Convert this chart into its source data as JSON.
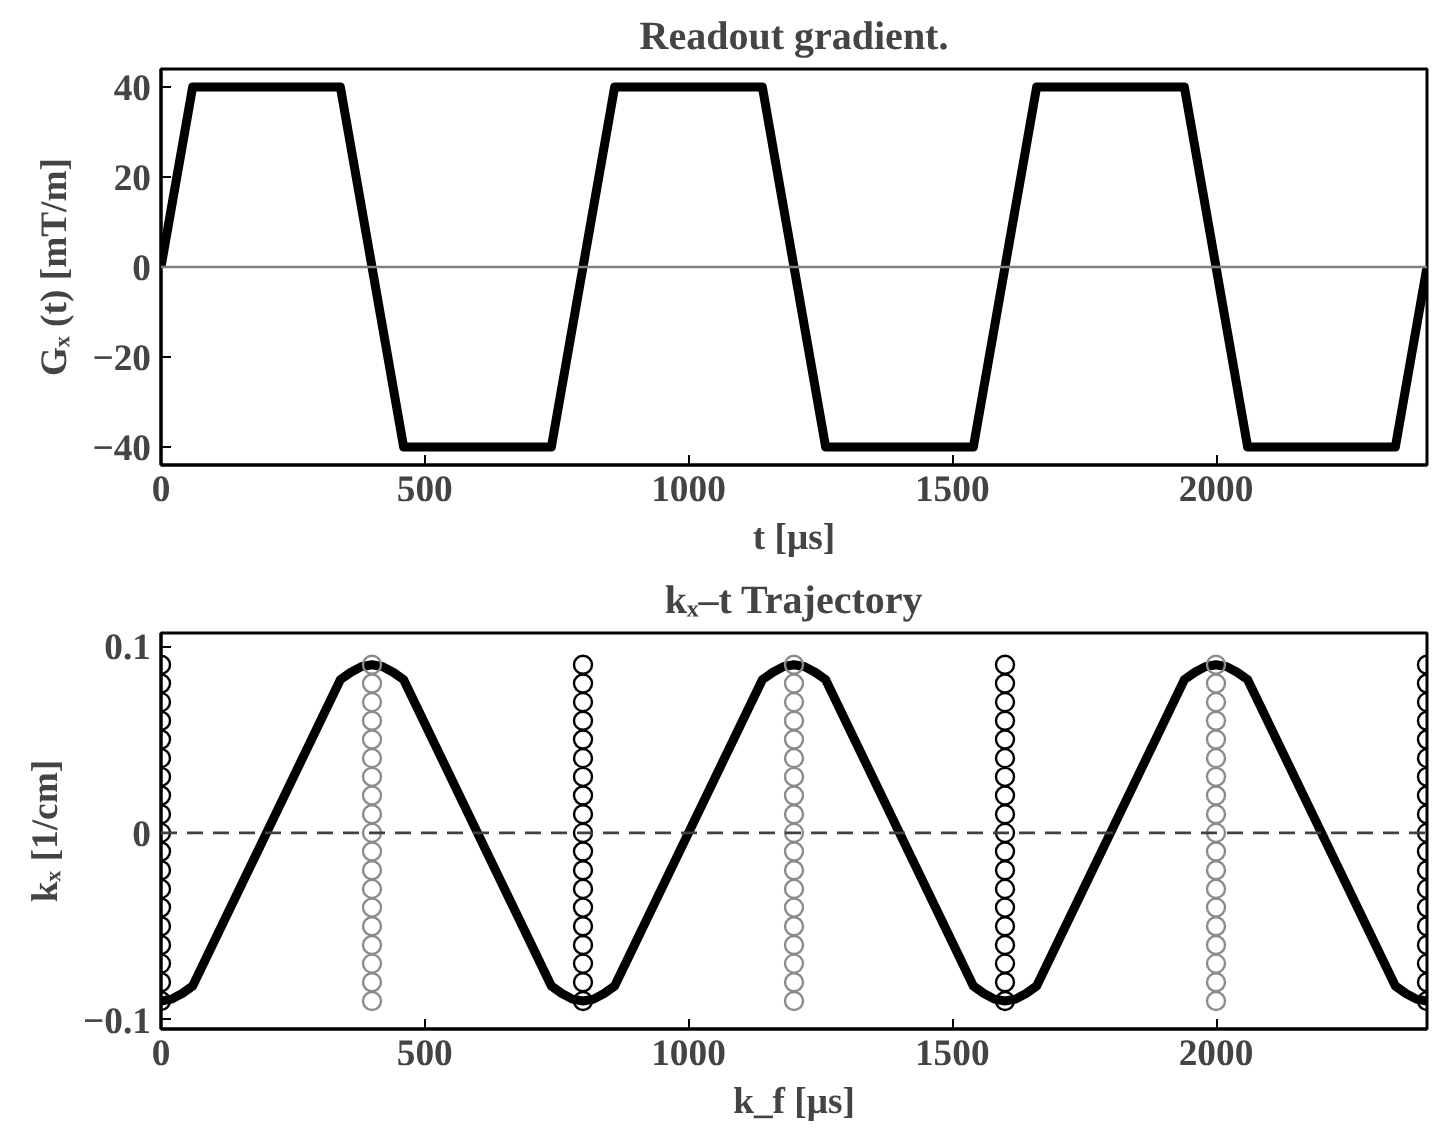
{
  "chart_data": [
    {
      "type": "line",
      "title": "Readout gradient.",
      "xlabel": "t [μs]",
      "ylabel": "Gₓ (t) [mT/m]",
      "xlim": [
        0,
        2400
      ],
      "xticks": [
        0,
        500,
        1000,
        1500,
        2000
      ],
      "ylim": [
        -44,
        44
      ],
      "yticks": [
        -40,
        -20,
        0,
        20,
        40
      ],
      "grid": false,
      "marker": "none",
      "line_style": "solid",
      "series": [
        {
          "color": "#000000",
          "x": [
            0,
            60,
            340,
            460,
            740,
            860,
            1140,
            1260,
            1540,
            1660,
            1940,
            2060,
            2340,
            2400
          ],
          "values": [
            0,
            40,
            40,
            -40,
            -40,
            40,
            40,
            -40,
            -40,
            40,
            40,
            -40,
            -40,
            0
          ]
        }
      ],
      "ref_lines": [
        {
          "axis": "y",
          "value": 0,
          "color": "#808080",
          "line_style": "solid"
        }
      ]
    },
    {
      "type": "line",
      "title": "kₓ–t Trajectory",
      "xlabel": "k_f [μs]",
      "ylabel": "kₓ [1/cm]",
      "xlim": [
        0,
        2400
      ],
      "xticks": [
        0,
        500,
        1000,
        1500,
        2000
      ],
      "ylim": [
        -0.105,
        0.107
      ],
      "yticks": [
        -0.1,
        0,
        0.1
      ],
      "grid": false,
      "line_style": "solid",
      "series": [
        {
          "type": "line",
          "color": "#000000",
          "x": [
            0,
            20,
            40,
            60,
            340,
            360,
            380,
            400,
            420,
            440,
            460,
            740,
            760,
            780,
            800,
            820,
            840,
            860,
            1140,
            1160,
            1180,
            1200,
            1220,
            1240,
            1260,
            1540,
            1560,
            1580,
            1600,
            1620,
            1640,
            1660,
            1940,
            1960,
            1980,
            2000,
            2020,
            2040,
            2060,
            2340,
            2360,
            2380,
            2400
          ],
          "values": [
            -0.09,
            -0.089,
            -0.086,
            -0.082,
            0.082,
            0.086,
            0.089,
            0.09,
            0.089,
            0.086,
            0.082,
            -0.082,
            -0.086,
            -0.089,
            -0.09,
            -0.089,
            -0.086,
            -0.082,
            0.082,
            0.086,
            0.089,
            0.09,
            0.089,
            0.086,
            0.082,
            -0.082,
            -0.086,
            -0.089,
            -0.09,
            -0.089,
            -0.086,
            -0.082,
            0.082,
            0.086,
            0.089,
            0.09,
            0.089,
            0.086,
            0.082,
            -0.082,
            -0.086,
            -0.089,
            -0.09
          ]
        },
        {
          "type": "scatter",
          "marker": "circle",
          "color": "#000000",
          "x": [
            0,
            0,
            0,
            0,
            0,
            0,
            0,
            0,
            0,
            0,
            0,
            0,
            0,
            0,
            0,
            0,
            0,
            0,
            0,
            800,
            800,
            800,
            800,
            800,
            800,
            800,
            800,
            800,
            800,
            800,
            800,
            800,
            800,
            800,
            800,
            800,
            800,
            800,
            1600,
            1600,
            1600,
            1600,
            1600,
            1600,
            1600,
            1600,
            1600,
            1600,
            1600,
            1600,
            1600,
            1600,
            1600,
            1600,
            1600,
            1600,
            1600,
            2400,
            2400,
            2400,
            2400,
            2400,
            2400,
            2400,
            2400,
            2400,
            2400,
            2400,
            2400,
            2400,
            2400,
            2400,
            2400,
            2400,
            2400,
            2400
          ],
          "values": [
            -0.09,
            -0.08,
            -0.07,
            -0.06,
            -0.05,
            -0.04,
            -0.03,
            -0.02,
            -0.01,
            0,
            0.01,
            0.02,
            0.03,
            0.04,
            0.05,
            0.06,
            0.07,
            0.08,
            0.09,
            -0.09,
            -0.08,
            -0.07,
            -0.06,
            -0.05,
            -0.04,
            -0.03,
            -0.02,
            -0.01,
            0,
            0.01,
            0.02,
            0.03,
            0.04,
            0.05,
            0.06,
            0.07,
            0.08,
            0.09,
            -0.09,
            -0.08,
            -0.07,
            -0.06,
            -0.05,
            -0.04,
            -0.03,
            -0.02,
            -0.01,
            0,
            0.01,
            0.02,
            0.03,
            0.04,
            0.05,
            0.06,
            0.07,
            0.08,
            0.09,
            -0.09,
            -0.08,
            -0.07,
            -0.06,
            -0.05,
            -0.04,
            -0.03,
            -0.02,
            -0.01,
            0,
            0.01,
            0.02,
            0.03,
            0.04,
            0.05,
            0.06,
            0.07,
            0.08,
            0.09
          ]
        },
        {
          "type": "scatter",
          "marker": "circle",
          "color": "#8c8c8c",
          "x": [
            400,
            400,
            400,
            400,
            400,
            400,
            400,
            400,
            400,
            400,
            400,
            400,
            400,
            400,
            400,
            400,
            400,
            400,
            400,
            1200,
            1200,
            1200,
            1200,
            1200,
            1200,
            1200,
            1200,
            1200,
            1200,
            1200,
            1200,
            1200,
            1200,
            1200,
            1200,
            1200,
            1200,
            1200,
            2000,
            2000,
            2000,
            2000,
            2000,
            2000,
            2000,
            2000,
            2000,
            2000,
            2000,
            2000,
            2000,
            2000,
            2000,
            2000,
            2000,
            2000,
            2000
          ],
          "values": [
            -0.09,
            -0.08,
            -0.07,
            -0.06,
            -0.05,
            -0.04,
            -0.03,
            -0.02,
            -0.01,
            0,
            0.01,
            0.02,
            0.03,
            0.04,
            0.05,
            0.06,
            0.07,
            0.08,
            0.09,
            -0.09,
            -0.08,
            -0.07,
            -0.06,
            -0.05,
            -0.04,
            -0.03,
            -0.02,
            -0.01,
            0,
            0.01,
            0.02,
            0.03,
            0.04,
            0.05,
            0.06,
            0.07,
            0.08,
            0.09,
            -0.09,
            -0.08,
            -0.07,
            -0.06,
            -0.05,
            -0.04,
            -0.03,
            -0.02,
            -0.01,
            0,
            0.01,
            0.02,
            0.03,
            0.04,
            0.05,
            0.06,
            0.07,
            0.08,
            0.09
          ]
        }
      ],
      "ref_lines": [
        {
          "axis": "y",
          "value": 0,
          "color": "#404040",
          "line_style": "dashed"
        }
      ]
    }
  ]
}
